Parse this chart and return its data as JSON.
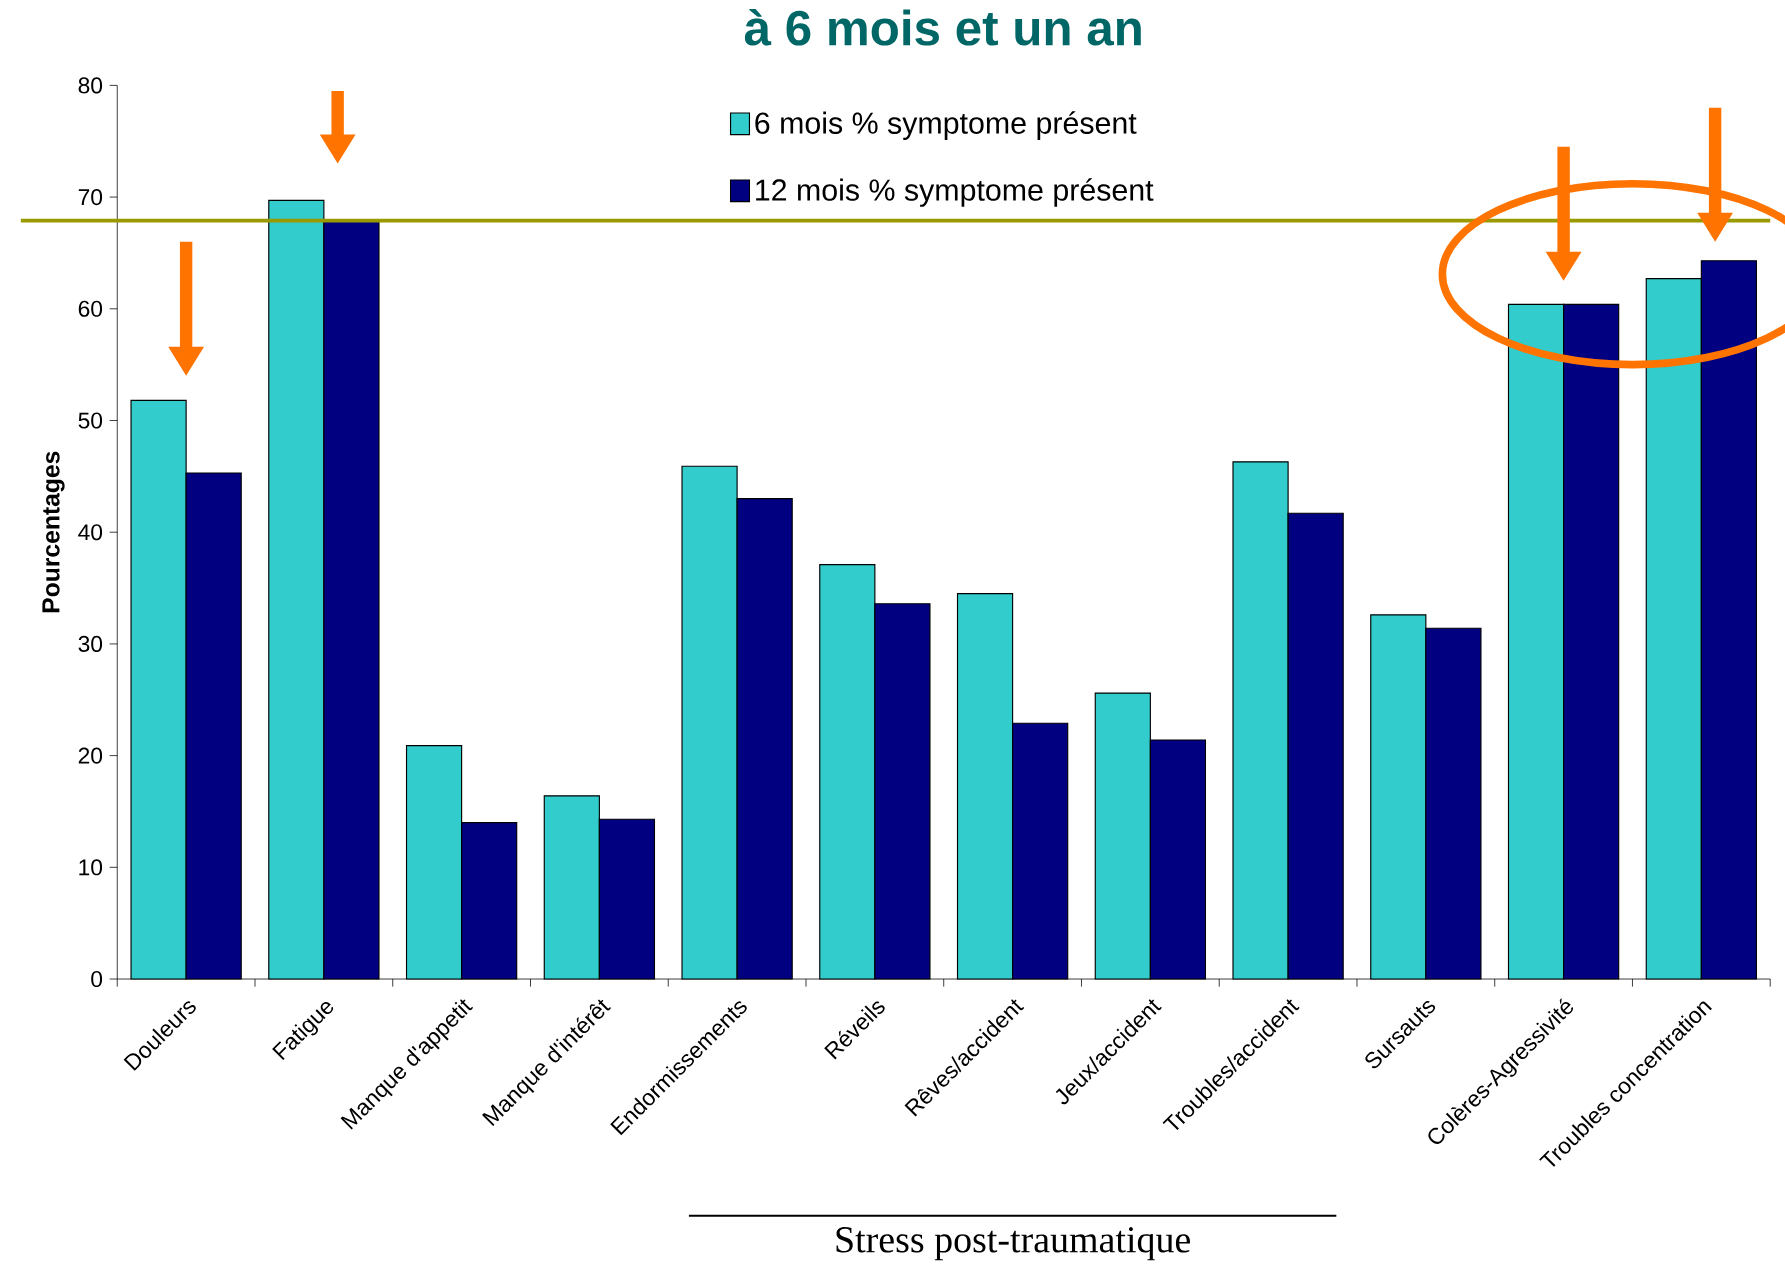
{
  "chart_data": {
    "type": "bar",
    "title": "à 6 mois et un an",
    "ylabel": "Pourcentages",
    "categories": [
      "Douleurs",
      "Fatigue",
      "Manque d'appetit",
      "Manque d'intérêt",
      "Endormissements",
      "Réveils",
      "Rêves/accident",
      "Jeux/accident",
      "Troubles/accident",
      "Sursauts",
      "Colères-Agressivité",
      "Troubles concentration"
    ],
    "series": [
      {
        "name": "6 mois % symptome présent",
        "color": "#33cccc",
        "values": [
          51.8,
          69.7,
          20.9,
          16.4,
          45.9,
          37.1,
          34.5,
          25.6,
          46.3,
          32.6,
          60.4,
          62.7
        ]
      },
      {
        "name": "12 mois % symptome présent",
        "color": "#000080",
        "values": [
          45.3,
          67.9,
          14.0,
          14.3,
          43.0,
          33.6,
          22.9,
          21.4,
          41.7,
          31.4,
          60.4,
          64.3
        ]
      }
    ],
    "ylim": [
      0,
      80
    ],
    "yticks": [
      0,
      10,
      20,
      30,
      40,
      50,
      60,
      70,
      80
    ],
    "ref_lines": [
      {
        "axis": "y",
        "value": 67.9,
        "color": "#999900"
      }
    ],
    "legend": "top",
    "annotations": [
      "Stress post-traumatique"
    ]
  }
}
